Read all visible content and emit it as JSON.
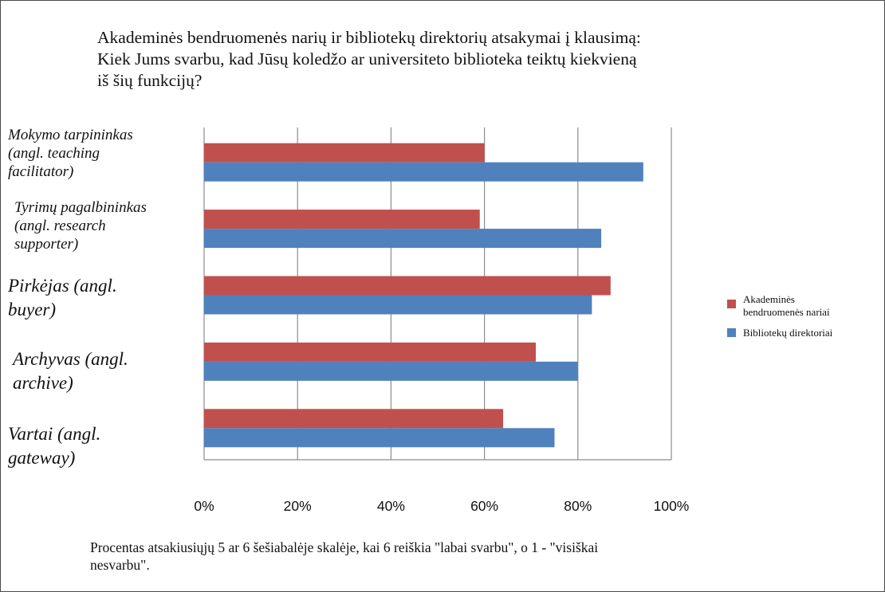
{
  "title_lines": [
    "Akademinės bendruomenės narių ir bibliotekų direktorių atsakymai į klausimą:",
    "Kiek Jums svarbu, kad Jūsų koledžo ar universiteto biblioteka teiktų kiekvieną",
    "iš šių funkcijų?"
  ],
  "category_labels": [
    [
      "Mokymo tarpininkas",
      "(angl. teaching",
      "facilitator)"
    ],
    [
      "Tyrimų pagalbininkas",
      "(angl. research",
      "supporter)"
    ],
    [
      "Pirkėjas (angl.",
      "buyer)"
    ],
    [
      "Archyvas (angl.",
      "archive)"
    ],
    [
      "Vartai (angl.",
      "gateway)"
    ]
  ],
  "legend": [
    {
      "lines": [
        "Akademinės",
        "bendruomenės nariai"
      ],
      "color": "#c0504d"
    },
    {
      "lines": [
        "Bibliotekų direktoriai"
      ],
      "color": "#4f81bd"
    }
  ],
  "footer_lines": [
    "Procentas atsakiusiųjų 5 ar 6 šešiabalėje skalėje, kai 6 reiškia \"labai svarbu\", o 1 - \"visiškai",
    "nesvarbu\"."
  ],
  "chart_data": {
    "type": "bar",
    "orientation": "horizontal",
    "categories": [
      "Mokymo tarpininkas (angl. teaching facilitator)",
      "Tyrimų pagalbininkas (angl. research supporter)",
      "Pirkėjas (angl. buyer)",
      "Archyvas (angl. archive)",
      "Vartai (angl. gateway)"
    ],
    "series": [
      {
        "name": "Akademinės bendruomenės nariai",
        "color": "#c0504d",
        "values": [
          60,
          59,
          87,
          71,
          64
        ]
      },
      {
        "name": "Bibliotekų direktoriai",
        "color": "#4f81bd",
        "values": [
          94,
          85,
          83,
          80,
          75
        ]
      }
    ],
    "xlim": [
      0,
      100
    ],
    "ticks": [
      0,
      20,
      40,
      60,
      80,
      100
    ],
    "tick_labels": [
      "0%",
      "20%",
      "40%",
      "60%",
      "80%",
      "100%"
    ],
    "grid": true,
    "legend_position": "right"
  }
}
